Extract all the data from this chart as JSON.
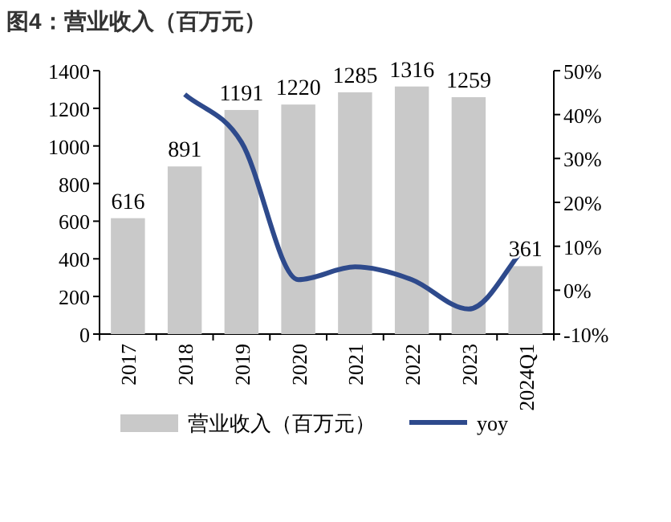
{
  "chart_data": {
    "type": "bar",
    "title": "图4：营业收入（百万元）",
    "categories": [
      "2017",
      "2018",
      "2019",
      "2020",
      "2021",
      "2022",
      "2023",
      "2024Q1"
    ],
    "series": [
      {
        "name": "营业收入（百万元）",
        "color": "#c9c9c9",
        "values": [
          616,
          891,
          1191,
          1220,
          1285,
          1316,
          1259,
          361
        ],
        "value_labels": [
          "616",
          "891",
          "1191",
          "1220",
          "1285",
          "1316",
          "1259",
          "361"
        ]
      },
      {
        "name": "yoy",
        "type": "line",
        "axis": "y2",
        "color": "#2e4a8c",
        "values": [
          null,
          44.6,
          33.7,
          2.4,
          5.3,
          2.4,
          -4.3,
          10
        ]
      }
    ],
    "ylim": [
      0,
      1400
    ],
    "yticks": [
      0,
      200,
      400,
      600,
      800,
      1000,
      1200,
      1400
    ],
    "y2lim": [
      -10,
      50
    ],
    "y2ticks": [
      {
        "value": -10,
        "label": "-10%"
      },
      {
        "value": 0,
        "label": "0%"
      },
      {
        "value": 10,
        "label": "10%"
      },
      {
        "value": 20,
        "label": "20%"
      },
      {
        "value": 30,
        "label": "30%"
      },
      {
        "value": 40,
        "label": "40%"
      },
      {
        "value": 50,
        "label": "50%"
      }
    ],
    "legend": "bottom"
  }
}
